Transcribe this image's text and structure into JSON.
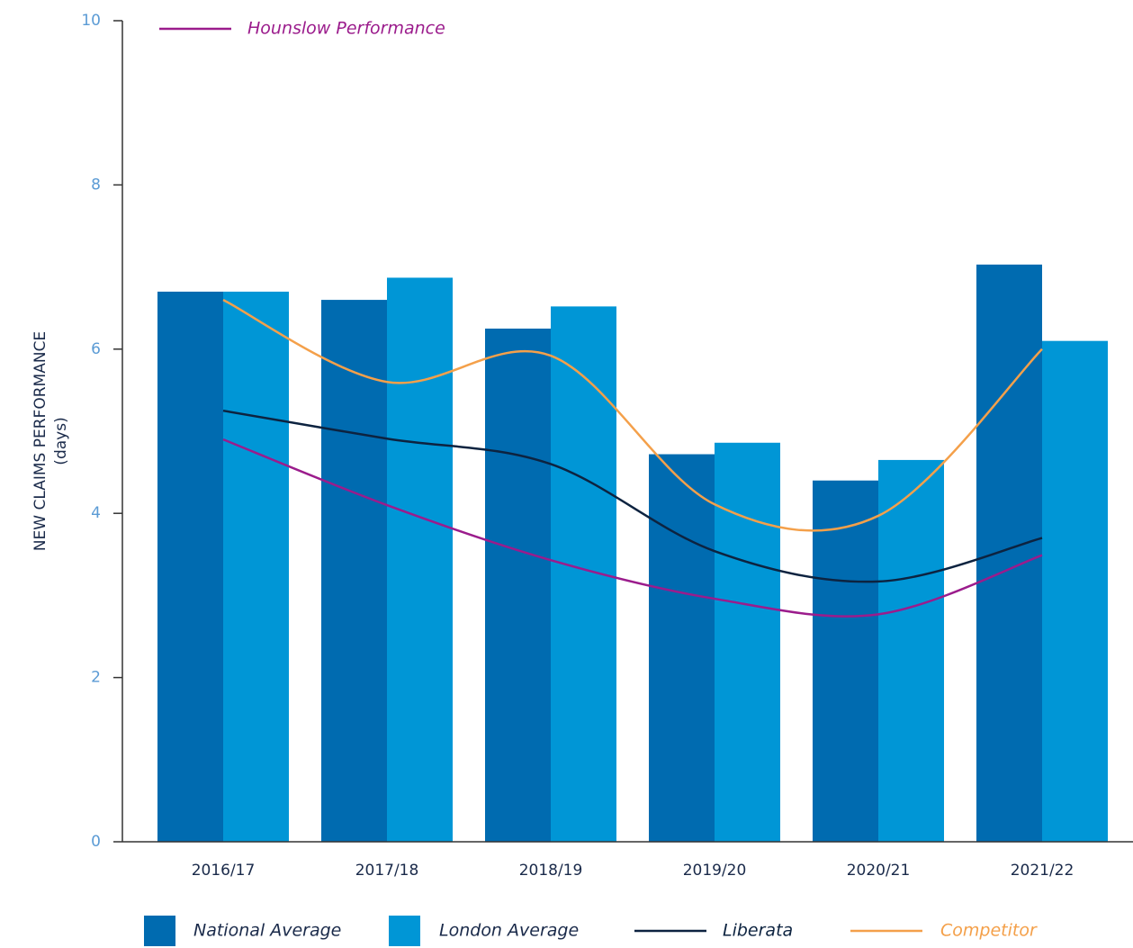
{
  "chart_data": {
    "type": "bar",
    "y_label": [
      "NEW CLAIMS PERFORMANCE",
      "(days)"
    ],
    "categories": [
      "2016/17",
      "2017/18",
      "2018/19",
      "2019/20",
      "2020/21",
      "2021/22"
    ],
    "series": [
      {
        "name": "National Average",
        "kind": "bar",
        "color": "#006bb0",
        "values": [
          6.7,
          6.6,
          6.25,
          4.72,
          4.4,
          7.03
        ]
      },
      {
        "name": "London Average",
        "kind": "bar",
        "color": "#0096d6",
        "values": [
          6.7,
          6.87,
          6.52,
          4.86,
          4.65,
          6.1
        ]
      },
      {
        "name": "Liberata",
        "kind": "line",
        "color": "#0d2340",
        "values": [
          5.25,
          4.91,
          4.6,
          3.54,
          3.17,
          3.7
        ]
      },
      {
        "name": "Competitor",
        "kind": "line",
        "color": "#f4a04a",
        "values": [
          6.6,
          5.6,
          5.92,
          4.11,
          3.97,
          6.0
        ]
      },
      {
        "name": "Hounslow Performance",
        "kind": "line",
        "color": "#9b1c8c",
        "values": [
          4.9,
          4.1,
          3.43,
          2.96,
          2.77,
          3.49
        ]
      }
    ],
    "ylim": [
      0,
      10
    ],
    "yticks": [
      0,
      2,
      4,
      6,
      8,
      10
    ],
    "grid": false
  }
}
